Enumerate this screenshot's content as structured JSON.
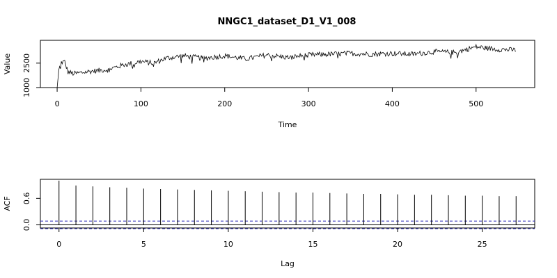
{
  "chart_data": [
    {
      "type": "line",
      "title": "NNGC1_dataset_D1_V1_008",
      "xlabel": "Time",
      "ylabel": "Value",
      "xlim": [
        -20,
        570
      ],
      "ylim": [
        1000,
        3900
      ],
      "x_ticks": [
        0,
        100,
        200,
        300,
        400,
        500
      ],
      "y_ticks": [
        1000,
        2500
      ],
      "y_tick_labels": [
        "1000",
        "2500"
      ],
      "series_points": 548,
      "anchors": [
        [
          0,
          1000
        ],
        [
          2,
          2100
        ],
        [
          5,
          2550
        ],
        [
          9,
          2580
        ],
        [
          13,
          1950
        ],
        [
          20,
          1850
        ],
        [
          40,
          2000
        ],
        [
          60,
          2100
        ],
        [
          70,
          2250
        ],
        [
          80,
          2400
        ],
        [
          100,
          2600
        ],
        [
          115,
          2500
        ],
        [
          130,
          2800
        ],
        [
          150,
          2950
        ],
        [
          175,
          2800
        ],
        [
          200,
          2950
        ],
        [
          225,
          2750
        ],
        [
          250,
          3000
        ],
        [
          275,
          2850
        ],
        [
          300,
          3000
        ],
        [
          325,
          3050
        ],
        [
          350,
          3100
        ],
        [
          375,
          3050
        ],
        [
          400,
          3100
        ],
        [
          425,
          3050
        ],
        [
          450,
          3200
        ],
        [
          475,
          3150
        ],
        [
          500,
          3500
        ],
        [
          525,
          3350
        ],
        [
          548,
          3300
        ]
      ],
      "noise_amplitude": 160
    },
    {
      "type": "bar",
      "title": "",
      "xlabel": "Lag",
      "ylabel": "ACF",
      "xlim": [
        -1.1,
        28.1
      ],
      "ylim": [
        -0.07,
        1.03
      ],
      "x_ticks": [
        0,
        5,
        10,
        15,
        20,
        25
      ],
      "y_ticks": [
        0.0,
        0.6
      ],
      "y_tick_labels": [
        "0.0",
        "0.6"
      ],
      "lags": [
        0,
        1,
        2,
        3,
        4,
        5,
        6,
        7,
        8,
        9,
        10,
        11,
        12,
        13,
        14,
        15,
        16,
        17,
        18,
        19,
        20,
        21,
        22,
        23,
        24,
        25,
        26,
        27
      ],
      "values": [
        1.0,
        0.89,
        0.87,
        0.85,
        0.84,
        0.82,
        0.81,
        0.8,
        0.79,
        0.78,
        0.77,
        0.76,
        0.75,
        0.74,
        0.73,
        0.73,
        0.72,
        0.71,
        0.7,
        0.7,
        0.69,
        0.68,
        0.68,
        0.67,
        0.66,
        0.66,
        0.65,
        0.65
      ],
      "confidence_bound": 0.085,
      "confidence_color": "#2b2bb8"
    }
  ]
}
